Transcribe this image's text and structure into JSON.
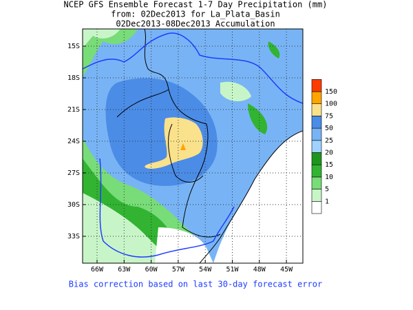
{
  "title_lines": [
    "NCEP GFS Ensemble Forecast 1-7 Day Precipitation (mm)",
    "from: 02Dec2013   for La_Plata_Basin",
    "02Dec2013-08Dec2013 Accumulation"
  ],
  "latitude_labels": [
    "15S",
    "18S",
    "21S",
    "24S",
    "27S",
    "30S",
    "33S"
  ],
  "longitude_labels": [
    "66W",
    "63W",
    "60W",
    "57W",
    "54W",
    "51W",
    "48W",
    "45W"
  ],
  "legend": {
    "labels": [
      "1",
      "5",
      "10",
      "15",
      "20",
      "25",
      "50",
      "75",
      "100",
      "150"
    ],
    "colors": [
      "#ffffff",
      "#c8f5c8",
      "#78dc78",
      "#32b432",
      "#1e961e",
      "#a0d2ff",
      "#78b4f5",
      "#4b8ce6",
      "#fae18c",
      "#ffa500",
      "#ff3c00"
    ]
  },
  "footer": "Bias correction based on last 30-day forecast error"
}
